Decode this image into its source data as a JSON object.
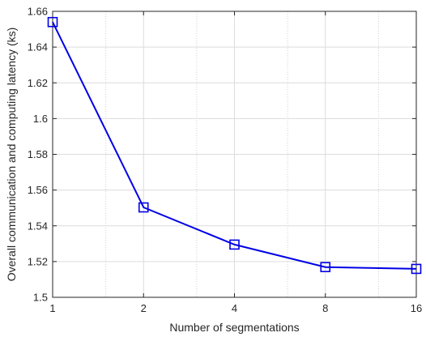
{
  "chart_data": {
    "type": "line",
    "title": "",
    "xlabel": "Number of segmentations",
    "ylabel": "Overall communication and computing latency (ks)",
    "x_scale": "log2",
    "xlim": [
      1,
      16
    ],
    "ylim": [
      1.5,
      1.66
    ],
    "x_ticks": [
      1,
      2,
      4,
      8,
      16
    ],
    "x_tick_labels": [
      "1",
      "2",
      "4",
      "8",
      "16"
    ],
    "y_ticks": [
      1.5,
      1.52,
      1.54,
      1.56,
      1.58,
      1.6,
      1.62,
      1.64,
      1.66
    ],
    "y_tick_labels": [
      "1.5",
      "1.52",
      "1.54",
      "1.56",
      "1.58",
      "1.6",
      "1.62",
      "1.64",
      "1.66"
    ],
    "grid": true,
    "series": [
      {
        "x": [
          1,
          2,
          4,
          8,
          16
        ],
        "values": [
          1.654,
          1.5503,
          1.5295,
          1.5169,
          1.5159
        ],
        "color": "#0000e6",
        "marker": "square"
      }
    ]
  }
}
